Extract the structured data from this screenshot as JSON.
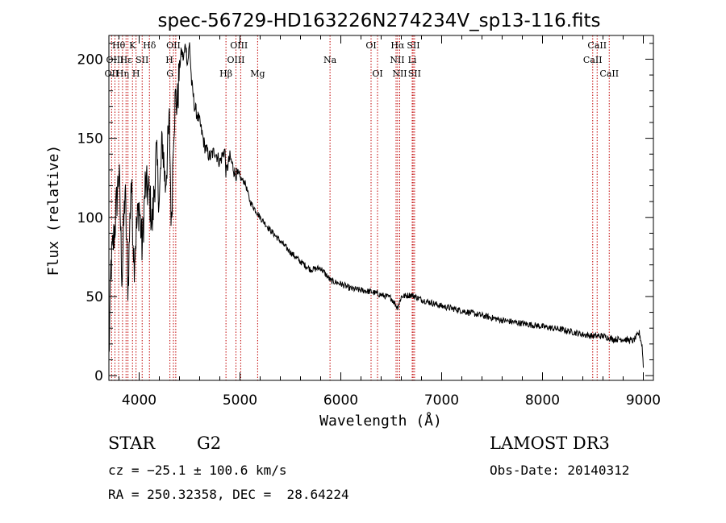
{
  "chart_data": {
    "type": "line",
    "title": "spec-56729-HD163226N274234V_sp13-116.fits",
    "xlabel": "Wavelength (Å)",
    "ylabel": "Flux (relative)",
    "xlim": [
      3700,
      9100
    ],
    "ylim": [
      -3,
      215
    ],
    "xticks": [
      4000,
      5000,
      6000,
      7000,
      8000,
      9000
    ],
    "yticks": [
      0,
      50,
      100,
      150,
      200
    ],
    "series": [
      {
        "name": "spectrum",
        "x": [
          3700,
          3720,
          3760,
          3800,
          3830,
          3860,
          3890,
          3920,
          3950,
          3970,
          4000,
          4030,
          4060,
          4100,
          4130,
          4170,
          4200,
          4230,
          4260,
          4300,
          4320,
          4340,
          4360,
          4380,
          4400,
          4420,
          4440,
          4460,
          4480,
          4500,
          4520,
          4550,
          4600,
          4650,
          4700,
          4750,
          4800,
          4850,
          4861,
          4900,
          4950,
          5000,
          5050,
          5100,
          5150,
          5200,
          5300,
          5400,
          5500,
          5600,
          5700,
          5800,
          5900,
          6000,
          6100,
          6200,
          6300,
          6400,
          6500,
          6563,
          6600,
          6700,
          6800,
          6900,
          7000,
          7200,
          7400,
          7600,
          7800,
          8000,
          8200,
          8400,
          8500,
          8600,
          8700,
          8800,
          8900,
          8960,
          8990,
          9000
        ],
        "y": [
          10,
          68,
          95,
          130,
          62,
          118,
          55,
          125,
          72,
          90,
          108,
          80,
          120,
          115,
          95,
          140,
          110,
          150,
          120,
          160,
          92,
          155,
          175,
          172,
          195,
          205,
          200,
          210,
          197,
          210,
          185,
          170,
          160,
          145,
          138,
          142,
          135,
          143,
          128,
          138,
          128,
          125,
          122,
          110,
          105,
          100,
          92,
          85,
          78,
          72,
          67,
          68,
          60,
          58,
          55,
          54,
          53,
          51,
          49,
          43,
          50,
          51,
          48,
          46,
          44,
          41,
          38,
          35,
          33,
          31,
          29,
          26,
          25,
          25,
          23,
          23,
          22,
          27,
          18,
          5
        ]
      }
    ],
    "lines_row1": [
      {
        "label": "Hθ",
        "x": 3797
      },
      {
        "label": "K",
        "x": 3934
      },
      {
        "label": "Hδ",
        "x": 4102
      },
      {
        "label": "OII",
        "x": 4340
      },
      {
        "label": "OIII",
        "x": 4990
      },
      {
        "label": "OI",
        "x": 6300
      },
      {
        "label": "Hα",
        "x": 6563
      },
      {
        "label": "SII",
        "x": 6720
      },
      {
        "label": "CaII",
        "x": 8542
      }
    ],
    "lines_row2": [
      {
        "label": "OIII",
        "x": 3760
      },
      {
        "label": "Hε",
        "x": 3870
      },
      {
        "label": "SII",
        "x": 4030
      },
      {
        "label": "H",
        "x": 4300
      },
      {
        "label": "OIII",
        "x": 4960
      },
      {
        "label": "Na",
        "x": 5893
      },
      {
        "label": "NII",
        "x": 6560
      },
      {
        "label": "Li",
        "x": 6708
      },
      {
        "label": "CaII",
        "x": 8498
      }
    ],
    "lines_row3": [
      {
        "label": "OII",
        "x": 3727
      },
      {
        "label": "Hη",
        "x": 3835
      },
      {
        "label": "H",
        "x": 3969
      },
      {
        "label": "G",
        "x": 4305
      },
      {
        "label": "Hβ",
        "x": 4861
      },
      {
        "label": "Mg",
        "x": 5175
      },
      {
        "label": "OI",
        "x": 6364
      },
      {
        "label": "NII",
        "x": 6584
      },
      {
        "label": "SII",
        "x": 6731
      },
      {
        "label": "CaII",
        "x": 8662
      }
    ],
    "line_markers": [
      3727,
      3760,
      3797,
      3835,
      3870,
      3889,
      3934,
      3969,
      4030,
      4102,
      4305,
      4340,
      4363,
      4861,
      4960,
      5007,
      5175,
      5893,
      6300,
      6364,
      6548,
      6563,
      6584,
      6708,
      6717,
      6731,
      8498,
      8542,
      8662
    ]
  },
  "info": {
    "class_label": "STAR",
    "subclass": "G2",
    "survey": "LAMOST DR3",
    "cz": "cz = −25.1 ± 100.6 km/s",
    "obs_date": "Obs-Date: 20140312",
    "coords": "RA = 250.32358, DEC =  28.64224"
  }
}
